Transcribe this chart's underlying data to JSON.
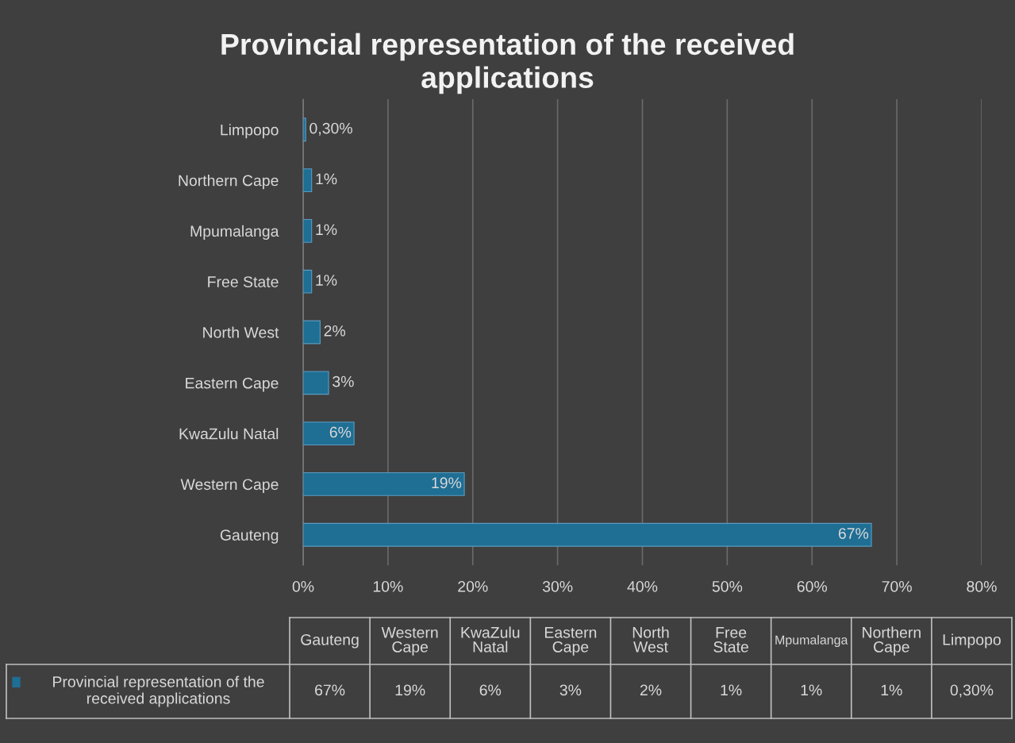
{
  "chart_data": {
    "type": "bar",
    "orientation": "horizontal",
    "title": "Provincial representation of the received applications",
    "categories": [
      "Limpopo",
      "Northern Cape",
      "Mpumalanga",
      "Free State",
      "North West",
      "Eastern Cape",
      "KwaZulu Natal",
      "Western Cape",
      "Gauteng"
    ],
    "series": [
      {
        "name": "Provincial representation of the received applications",
        "color": "#1f6e94",
        "values": [
          0.3,
          1,
          1,
          1,
          2,
          3,
          6,
          19,
          67
        ],
        "value_labels": [
          "0,30%",
          "1%",
          "1%",
          "1%",
          "2%",
          "3%",
          "6%",
          "19%",
          "67%"
        ]
      }
    ],
    "xlim": [
      0,
      80
    ],
    "xticks": [
      {
        "value": 0,
        "label": "0%"
      },
      {
        "value": 10,
        "label": "10%"
      },
      {
        "value": 20,
        "label": "20%"
      },
      {
        "value": 30,
        "label": "30%"
      },
      {
        "value": 40,
        "label": "40%"
      },
      {
        "value": 50,
        "label": "50%"
      },
      {
        "value": 60,
        "label": "60%"
      },
      {
        "value": 70,
        "label": "70%"
      },
      {
        "value": 80,
        "label": "80%"
      }
    ],
    "grid": "x"
  }
}
